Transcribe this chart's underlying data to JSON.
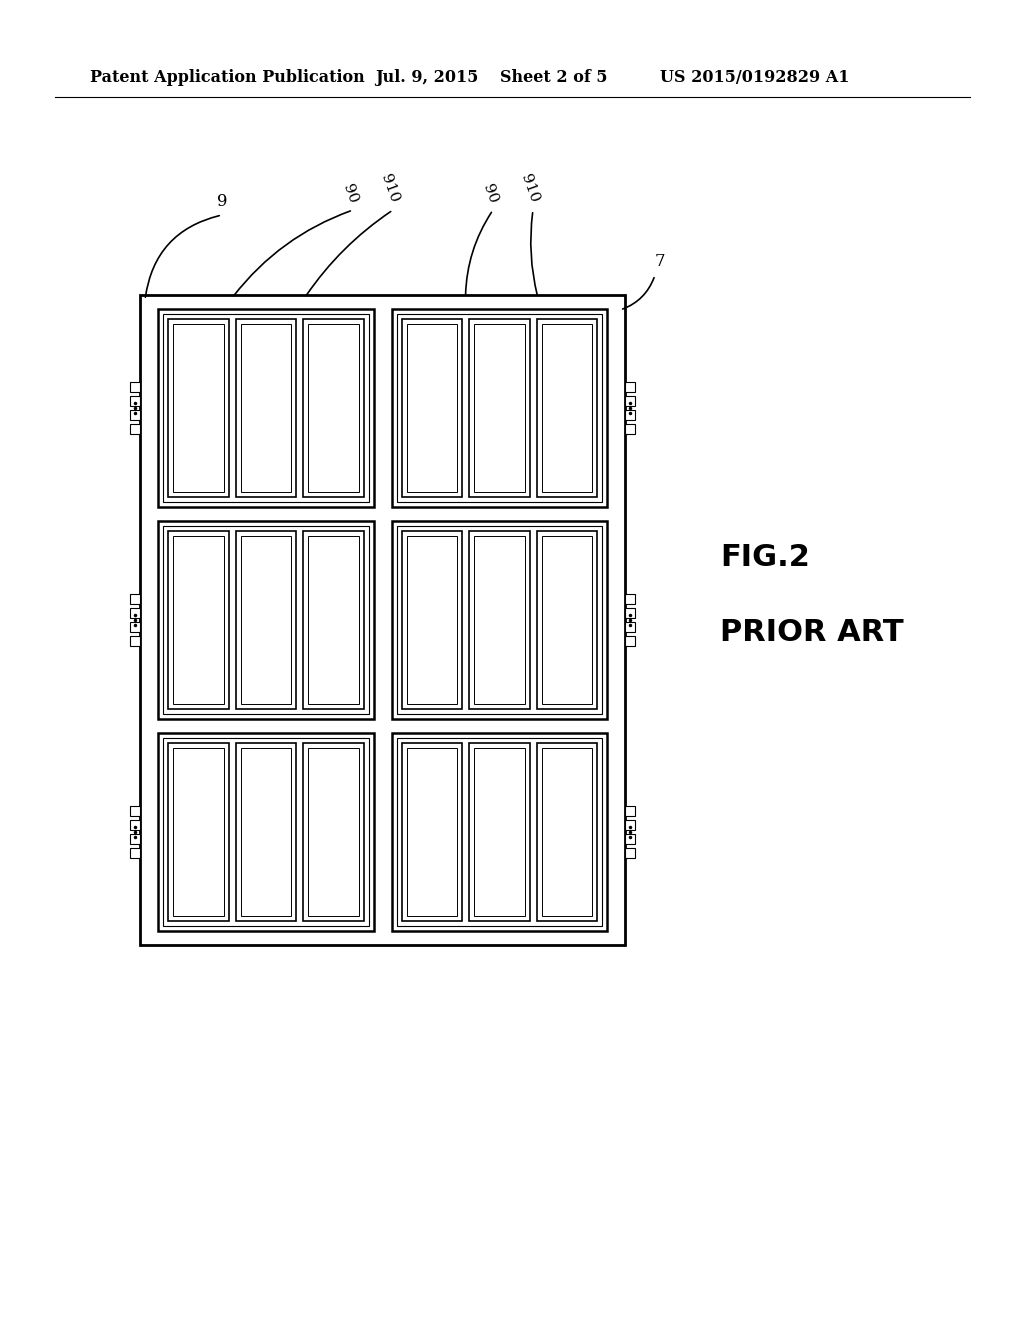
{
  "bg_color": "#ffffff",
  "header_text": "Patent Application Publication",
  "header_date": "Jul. 9, 2015",
  "header_sheet": "Sheet 2 of 5",
  "header_patent": "US 2015/0192829 A1",
  "fig_label": "FIG.2",
  "fig_sublabel": "PRIOR ART",
  "label_9": "9",
  "label_90": "90",
  "label_910": "910",
  "label_7": "7",
  "line_color": "#000000"
}
